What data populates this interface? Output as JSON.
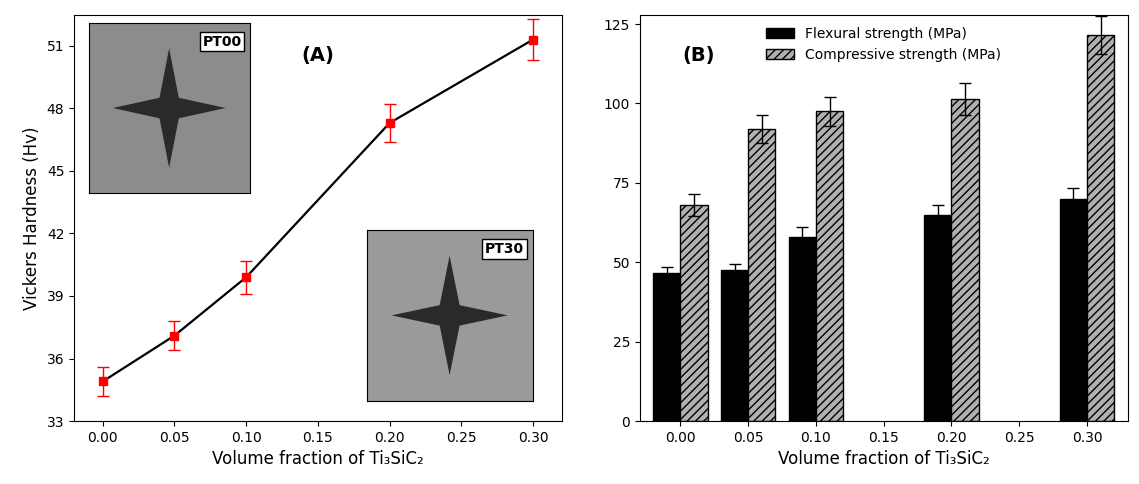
{
  "chart_data": [
    {
      "type": "line",
      "panel_label": "(A)",
      "x_label": "Volume fraction of Ti₃SiC₂",
      "y_label": "Vickers Hardness (Hv)",
      "annotations": [
        "PT00",
        "PT30"
      ],
      "x": [
        0.0,
        0.05,
        0.1,
        0.2,
        0.3
      ],
      "series": [
        {
          "name": "Vickers Hardness",
          "color": "#000000",
          "marker": "square",
          "values": [
            34.9,
            37.1,
            39.9,
            47.3,
            51.3
          ],
          "errors": [
            0.7,
            0.7,
            0.8,
            0.9,
            1.0
          ]
        }
      ],
      "xlim": [
        -0.02,
        0.32
      ],
      "xticks": [
        {
          "value": 0.0,
          "label": "0.00"
        },
        {
          "value": 0.05,
          "label": "0.05"
        },
        {
          "value": 0.1,
          "label": "0.10"
        },
        {
          "value": 0.15,
          "label": "0.15"
        },
        {
          "value": 0.2,
          "label": "0.20"
        },
        {
          "value": 0.25,
          "label": "0.25"
        },
        {
          "value": 0.3,
          "label": "0.30"
        }
      ],
      "ylim": [
        33,
        52.5
      ],
      "yticks": [
        33,
        36,
        39,
        42,
        45,
        48,
        51
      ]
    },
    {
      "type": "bar",
      "panel_label": "(B)",
      "x_label": "Volume fraction of Ti₃SiC₂",
      "categories": [
        "0.00",
        "0.05",
        "0.10",
        "0.15",
        "0.20",
        "0.25",
        "0.30"
      ],
      "series": [
        {
          "name": "Flexural strength (MPa)",
          "color": "#000000",
          "values": [
            46.5,
            47.5,
            58.0,
            null,
            65.0,
            null,
            70.0
          ],
          "errors": [
            2.0,
            2.0,
            3.0,
            null,
            3.0,
            null,
            3.5
          ]
        },
        {
          "name": "Compressive strength (MPa)",
          "color": "#b0b0b0",
          "values": [
            68.0,
            92.0,
            97.5,
            null,
            101.5,
            null,
            121.5
          ],
          "errors": [
            3.5,
            4.5,
            4.5,
            null,
            5.0,
            null,
            6.0
          ]
        }
      ],
      "ylim": [
        0,
        128
      ],
      "yticks": [
        0,
        25,
        50,
        75,
        100,
        125
      ],
      "legend": "upper center"
    }
  ]
}
